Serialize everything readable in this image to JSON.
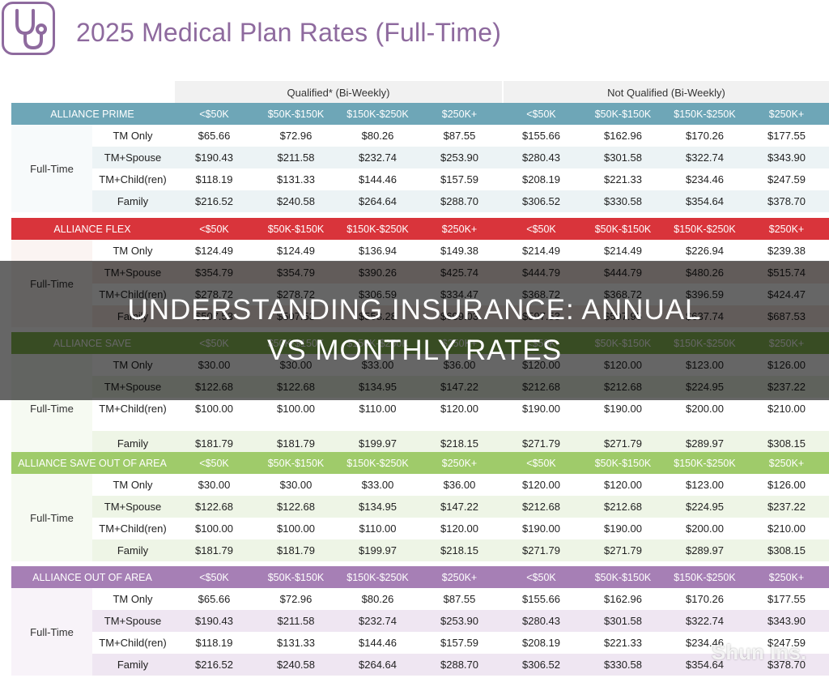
{
  "page": {
    "title": "2025 Medical Plan Rates (Full-Time)"
  },
  "logo": {
    "icon": "stethoscope-icon",
    "color": "#8e6a9e"
  },
  "groups": {
    "qualified": "Qualified* (Bi-Weekly)",
    "not_qualified": "Not Qualified (Bi-Weekly)"
  },
  "income_brackets": [
    "<$50K",
    "$50K-$150K",
    "$150K-$250K",
    "$250K+",
    "<$50K",
    "$50K-$150K",
    "$150K-$250K",
    "$250K+"
  ],
  "sections": [
    {
      "name": "Alliance Prime",
      "header_color": "#6ea6b7",
      "row_color": "#ecf3f5",
      "label_bg": "#f7fafb",
      "label": "Full-Time",
      "rows": [
        {
          "tier": "TM Only",
          "rates": [
            "$65.66",
            "$72.96",
            "$80.26",
            "$87.55",
            "$155.66",
            "$162.96",
            "$170.26",
            "$177.55"
          ]
        },
        {
          "tier": "TM+Spouse",
          "rates": [
            "$190.43",
            "$211.58",
            "$232.74",
            "$253.90",
            "$280.43",
            "$301.58",
            "$322.74",
            "$343.90"
          ]
        },
        {
          "tier": "TM+Child(ren)",
          "rates": [
            "$118.19",
            "$131.33",
            "$144.46",
            "$157.59",
            "$208.19",
            "$221.33",
            "$234.46",
            "$247.59"
          ]
        },
        {
          "tier": "Family",
          "rates": [
            "$216.52",
            "$240.58",
            "$264.64",
            "$288.70",
            "$306.52",
            "$330.58",
            "$354.64",
            "$378.70"
          ]
        }
      ]
    },
    {
      "name": "Alliance Flex",
      "header_color": "#d9343b",
      "row_color": "#f6e6e2",
      "label_bg": "#fbf4f2",
      "label": "Full-Time",
      "rows": [
        {
          "tier": "TM Only",
          "rates": [
            "$124.49",
            "$124.49",
            "$136.94",
            "$149.38",
            "$214.49",
            "$214.49",
            "$226.94",
            "$239.38"
          ]
        },
        {
          "tier": "TM+Spouse",
          "rates": [
            "$354.79",
            "$354.79",
            "$390.26",
            "$425.74",
            "$444.79",
            "$444.79",
            "$480.26",
            "$515.74"
          ]
        },
        {
          "tier": "TM+Child(ren)",
          "rates": [
            "$278.72",
            "$278.72",
            "$306.59",
            "$334.47",
            "$368.72",
            "$368.72",
            "$396.59",
            "$424.47"
          ]
        },
        {
          "tier": "Family",
          "rates": [
            "$507.53",
            "$507.53",
            "$558.28",
            "$609.03",
            "$597.53",
            "$597.95",
            "$637.74",
            "$687.53"
          ]
        }
      ]
    },
    {
      "name": "Alliance Save",
      "header_color": "#8dbd57",
      "row_color": "#eef5e6",
      "label_bg": "#f6faf2",
      "label": "Full-Time",
      "rows": [
        {
          "tier": "TM Only",
          "rates": [
            "$30.00",
            "$30.00",
            "$33.00",
            "$36.00",
            "$120.00",
            "$120.00",
            "$123.00",
            "$126.00"
          ]
        },
        {
          "tier": "TM+Spouse",
          "rates": [
            "$122.68",
            "$122.68",
            "$134.95",
            "$147.22",
            "$212.68",
            "$212.68",
            "$224.95",
            "$237.22"
          ]
        },
        {
          "tier": "TM+Child(ren)",
          "rates": [
            "$100.00",
            "$100.00",
            "$110.00",
            "$120.00",
            "$190.00",
            "$190.00",
            "$200.00",
            "$210.00"
          ]
        },
        {
          "tier": "Family",
          "rates": [
            "$181.79",
            "$181.79",
            "$199.97",
            "$218.15",
            "$271.79",
            "$271.79",
            "$289.97",
            "$308.15"
          ]
        }
      ]
    },
    {
      "name": "Alliance Save Out of Area",
      "header_color": "#9fcb6a",
      "row_color": "#eef5e6",
      "label_bg": "#f6faf2",
      "label": "Full-Time",
      "rows": [
        {
          "tier": "TM Only",
          "rates": [
            "$30.00",
            "$30.00",
            "$33.00",
            "$36.00",
            "$120.00",
            "$120.00",
            "$123.00",
            "$126.00"
          ]
        },
        {
          "tier": "TM+Spouse",
          "rates": [
            "$122.68",
            "$122.68",
            "$134.95",
            "$147.22",
            "$212.68",
            "$212.68",
            "$224.95",
            "$237.22"
          ]
        },
        {
          "tier": "TM+Child(ren)",
          "rates": [
            "$100.00",
            "$100.00",
            "$110.00",
            "$120.00",
            "$190.00",
            "$190.00",
            "$200.00",
            "$210.00"
          ]
        },
        {
          "tier": "Family",
          "rates": [
            "$181.79",
            "$181.79",
            "$199.97",
            "$218.15",
            "$271.79",
            "$271.79",
            "$289.97",
            "$308.15"
          ]
        }
      ]
    },
    {
      "name": "Alliance Out of Area",
      "header_color": "#a67fb5",
      "row_color": "#efe6f2",
      "label_bg": "#f8f3f9",
      "label": "Full-Time",
      "rows": [
        {
          "tier": "TM Only",
          "rates": [
            "$65.66",
            "$72.96",
            "$80.26",
            "$87.55",
            "$155.66",
            "$162.96",
            "$170.26",
            "$177.55"
          ]
        },
        {
          "tier": "TM+Spouse",
          "rates": [
            "$190.43",
            "$211.58",
            "$232.74",
            "$253.90",
            "$280.43",
            "$301.58",
            "$322.74",
            "$343.90"
          ]
        },
        {
          "tier": "TM+Child(ren)",
          "rates": [
            "$118.19",
            "$131.33",
            "$144.46",
            "$157.59",
            "$208.19",
            "$221.33",
            "$234.46",
            "$247.59"
          ]
        },
        {
          "tier": "Family",
          "rates": [
            "$216.52",
            "$240.58",
            "$264.64",
            "$288.70",
            "$306.52",
            "$330.58",
            "$354.64",
            "$378.70"
          ]
        }
      ]
    }
  ],
  "overlay": {
    "line1": "Understanding Insurance: Annual",
    "line2": "vs Monthly Rates"
  },
  "watermark": "Shun Ins."
}
